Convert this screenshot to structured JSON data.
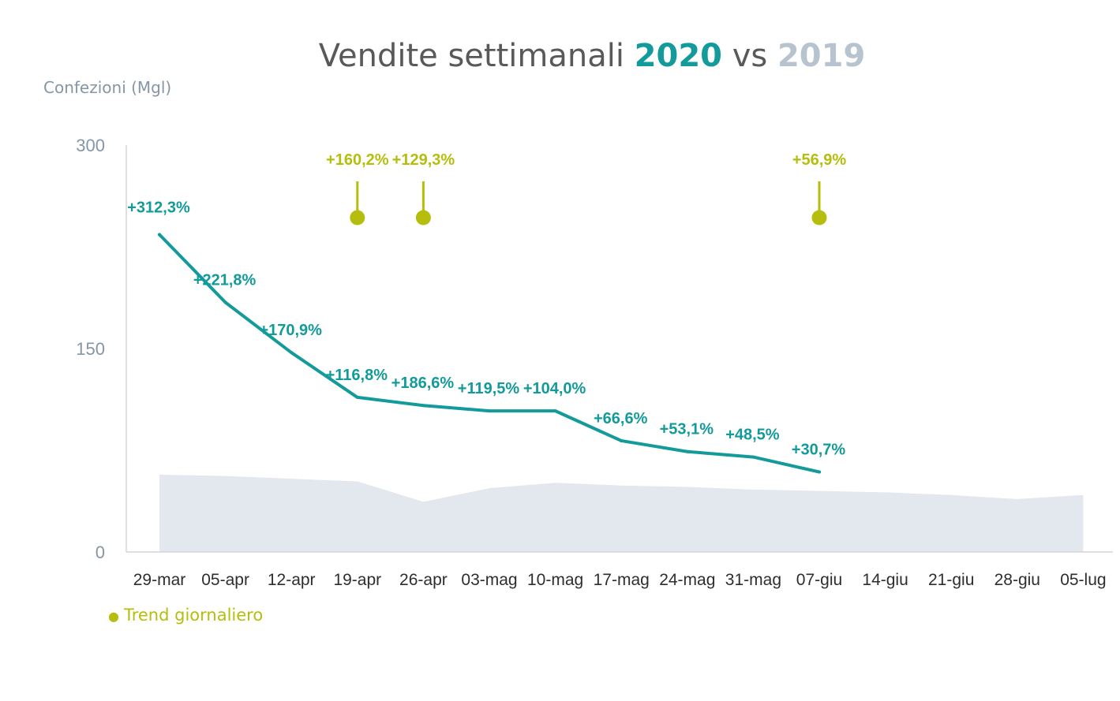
{
  "title": {
    "main": "Vendite settimanali ",
    "highlight_2020": "2020",
    "vs": " vs ",
    "highlight_2019": "2019"
  },
  "unit_label": "Confezioni (Mgl)",
  "legend": {
    "marker": "●",
    "label": "Trend giornaliero"
  },
  "colors": {
    "series_2020": "#139a9a",
    "area_2019": "#e3e7ee",
    "trend": "#b5be0c",
    "axis": "#d0d5da"
  },
  "chart_data": {
    "type": "line",
    "categories": [
      "29-mar",
      "05-apr",
      "12-apr",
      "19-apr",
      "26-apr",
      "03-mag",
      "10-mag",
      "17-mag",
      "24-mag",
      "31-mag",
      "07-giu",
      "14-giu",
      "21-giu",
      "28-giu",
      "05-lug"
    ],
    "ylim": [
      0,
      300
    ],
    "yticks": [
      0,
      150,
      300
    ],
    "grid": false,
    "series": [
      {
        "name": "2020",
        "kind": "line",
        "values": [
          234,
          184,
          147,
          114,
          108,
          104,
          104,
          82,
          74,
          70,
          59,
          null,
          null,
          null,
          null
        ],
        "labels": [
          "+312,3%",
          "+221,8%",
          "+170,9%",
          "+116,8%",
          "+186,6%",
          "+119,5%",
          "+104,0%",
          "+66,6%",
          "+53,1%",
          "+48,5%",
          "+30,7%",
          null,
          null,
          null,
          null
        ]
      },
      {
        "name": "2019",
        "kind": "area",
        "values": [
          57,
          56,
          54,
          52,
          37,
          47,
          51,
          49,
          48,
          46,
          45,
          44,
          42,
          39,
          42
        ]
      }
    ],
    "trend_markers": [
      {
        "category": "19-apr",
        "label": "+160,2%"
      },
      {
        "category": "26-apr",
        "label": "+129,3%"
      },
      {
        "category": "07-giu",
        "label": "+56,9%"
      }
    ]
  }
}
